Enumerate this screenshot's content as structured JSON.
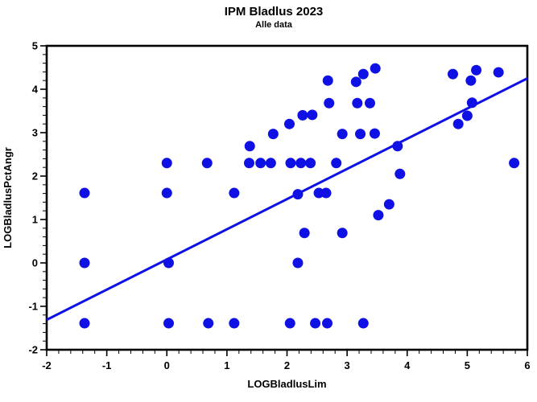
{
  "chart_data": {
    "type": "scatter",
    "title": "IPM Bladlus 2023",
    "subtitle": "Alle data",
    "xlabel": "LOGBladlusLim",
    "ylabel": "LOGBladlusPctAngr",
    "xlim": [
      -2,
      6
    ],
    "ylim": [
      -2,
      5
    ],
    "x_ticks": [
      -2,
      -1,
      0,
      1,
      2,
      3,
      4,
      5,
      6
    ],
    "y_ticks": [
      -2,
      -1,
      0,
      1,
      2,
      3,
      4,
      5
    ],
    "minor_tick_step": 0.2,
    "grid": false,
    "legend": "none",
    "marker_color": "#0f10e4",
    "line_color": "#0f10e4",
    "frame_color": "#000000",
    "regression_line": {
      "x1": -2.0,
      "y1": -1.31,
      "x2": 6.0,
      "y2": 4.25
    },
    "points": [
      [
        -1.37,
        -1.39
      ],
      [
        0.03,
        -1.39
      ],
      [
        0.69,
        -1.39
      ],
      [
        1.12,
        -1.39
      ],
      [
        2.05,
        -1.39
      ],
      [
        2.47,
        -1.39
      ],
      [
        2.67,
        -1.39
      ],
      [
        3.27,
        -1.39
      ],
      [
        -1.37,
        0.0
      ],
      [
        0.03,
        0.0
      ],
      [
        2.18,
        0.0
      ],
      [
        2.29,
        0.69
      ],
      [
        2.92,
        0.69
      ],
      [
        3.52,
        1.1
      ],
      [
        3.7,
        1.35
      ],
      [
        -1.37,
        1.61
      ],
      [
        0.0,
        1.61
      ],
      [
        1.12,
        1.61
      ],
      [
        2.18,
        1.58
      ],
      [
        2.53,
        1.61
      ],
      [
        2.65,
        1.61
      ],
      [
        3.88,
        2.05
      ],
      [
        0.0,
        2.3
      ],
      [
        0.67,
        2.3
      ],
      [
        1.37,
        2.3
      ],
      [
        1.56,
        2.3
      ],
      [
        1.73,
        2.3
      ],
      [
        2.06,
        2.3
      ],
      [
        2.23,
        2.3
      ],
      [
        2.39,
        2.3
      ],
      [
        2.82,
        2.3
      ],
      [
        5.78,
        2.3
      ],
      [
        1.38,
        2.69
      ],
      [
        3.84,
        2.69
      ],
      [
        1.77,
        2.97
      ],
      [
        2.92,
        2.97
      ],
      [
        3.22,
        2.97
      ],
      [
        3.46,
        2.98
      ],
      [
        2.04,
        3.2
      ],
      [
        4.85,
        3.2
      ],
      [
        2.26,
        3.4
      ],
      [
        2.42,
        3.41
      ],
      [
        5.0,
        3.39
      ],
      [
        2.7,
        3.68
      ],
      [
        3.17,
        3.68
      ],
      [
        3.38,
        3.68
      ],
      [
        5.08,
        3.69
      ],
      [
        2.68,
        4.2
      ],
      [
        3.15,
        4.17
      ],
      [
        5.06,
        4.2
      ],
      [
        3.27,
        4.35
      ],
      [
        3.47,
        4.48
      ],
      [
        4.76,
        4.35
      ],
      [
        5.15,
        4.44
      ],
      [
        5.52,
        4.39
      ]
    ]
  }
}
